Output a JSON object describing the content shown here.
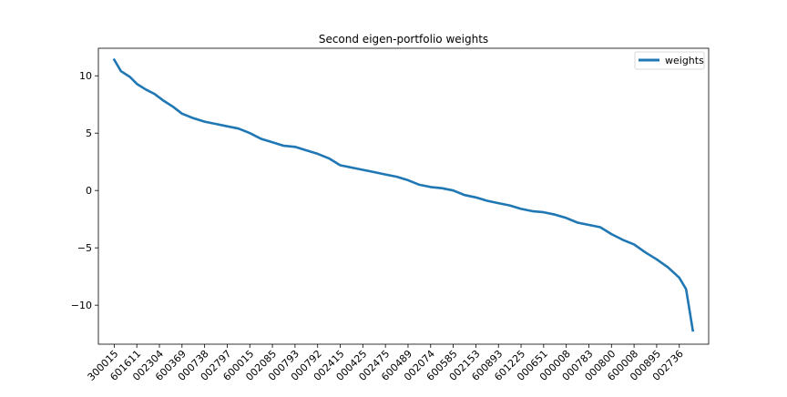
{
  "chart_data": {
    "type": "line",
    "title": "Second eigen-portfolio weights",
    "xlabel": "",
    "ylabel": "",
    "ylim": [
      -13.4,
      12.4
    ],
    "yticks": [
      10,
      5,
      0,
      -5,
      -10
    ],
    "ytick_labels": [
      "10",
      "5",
      "0",
      "−5",
      "−10"
    ],
    "xtick_labels": [
      "300015",
      "601611",
      "002304",
      "600369",
      "000738",
      "002797",
      "600015",
      "002085",
      "000793",
      "000792",
      "002415",
      "000425",
      "002475",
      "600489",
      "002074",
      "600585",
      "002153",
      "600893",
      "601225",
      "000651",
      "000008",
      "000783",
      "000800",
      "600008",
      "000895",
      "002736"
    ],
    "legend": {
      "position": "top-right",
      "entries": [
        "weights"
      ]
    },
    "grid": false,
    "color": "#1f77b4",
    "series": [
      {
        "name": "weights",
        "x": [
          0,
          0.3,
          0.7,
          1,
          1.4,
          1.8,
          2.2,
          2.6,
          3,
          3.5,
          4,
          4.5,
          5,
          5.5,
          6,
          6.5,
          7,
          7.5,
          8,
          8.5,
          9,
          9.5,
          10,
          10.5,
          11,
          11.5,
          12,
          12.5,
          13,
          13.5,
          14,
          14.5,
          15,
          15.5,
          16,
          16.5,
          17,
          17.5,
          18,
          18.5,
          19,
          19.5,
          20,
          20.5,
          21,
          21.5,
          22,
          22.5,
          23,
          23.5,
          24,
          24.5,
          25,
          25.3,
          25.6
        ],
        "values": [
          11.4,
          10.4,
          9.9,
          9.3,
          8.8,
          8.4,
          7.8,
          7.3,
          6.7,
          6.3,
          6.0,
          5.8,
          5.6,
          5.4,
          5.0,
          4.5,
          4.2,
          3.9,
          3.8,
          3.5,
          3.2,
          2.8,
          2.2,
          2.0,
          1.8,
          1.6,
          1.4,
          1.2,
          0.9,
          0.5,
          0.3,
          0.2,
          0.0,
          -0.4,
          -0.6,
          -0.9,
          -1.1,
          -1.3,
          -1.6,
          -1.8,
          -1.9,
          -2.1,
          -2.4,
          -2.8,
          -3.0,
          -3.2,
          -3.8,
          -4.3,
          -4.7,
          -5.4,
          -6.0,
          -6.7,
          -7.6,
          -8.6,
          -12.2
        ]
      }
    ]
  }
}
